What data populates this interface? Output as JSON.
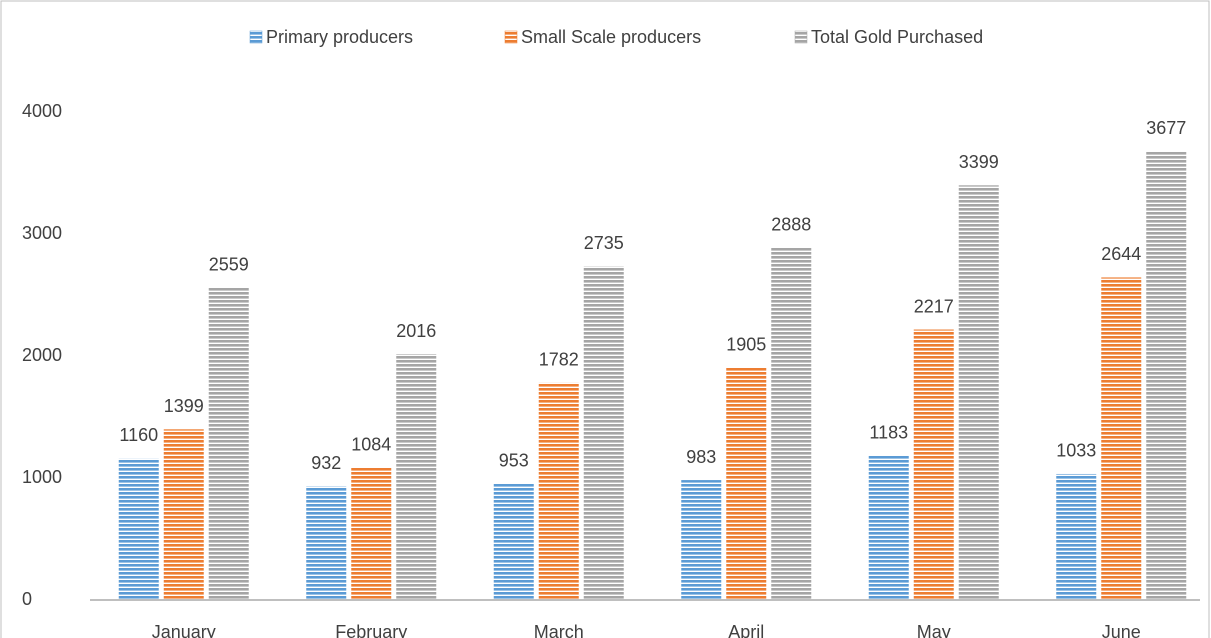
{
  "chart_data": {
    "type": "bar",
    "categories": [
      "January",
      "February",
      "March",
      "April",
      "May",
      "June"
    ],
    "series": [
      {
        "name": "Primary producers",
        "color": "#5b9bd5",
        "values": [
          1160,
          932,
          953,
          983,
          1183,
          1033
        ]
      },
      {
        "name": "Small Scale producers",
        "color": "#ed7d31",
        "values": [
          1399,
          1084,
          1782,
          1905,
          2217,
          2644
        ]
      },
      {
        "name": "Total Gold Purchased",
        "color": "#a5a5a5",
        "values": [
          2559,
          2016,
          2735,
          2888,
          3399,
          3677
        ]
      }
    ],
    "ylim": [
      0,
      4000
    ],
    "yticks": [
      0,
      1000,
      2000,
      3000,
      4000
    ],
    "grid": false,
    "legend": "top"
  }
}
